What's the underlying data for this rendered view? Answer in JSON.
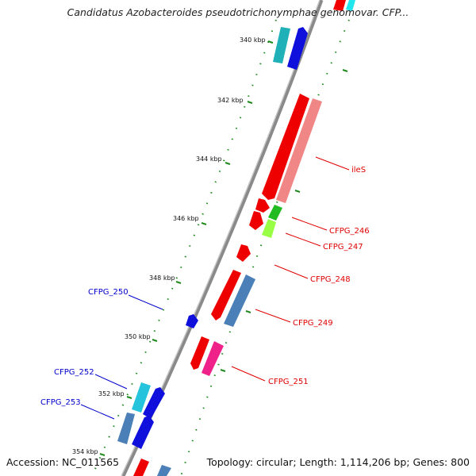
{
  "title": "Candidatus Azobacteroides pseudotrichonymphae genomovar. CFP...",
  "footer": {
    "accession": "Accession: NC_011565",
    "summary": "Topology: circular; Length: 1,114,206 bp; Genes: 800"
  },
  "colors": {
    "backbone": "#8a8a8a",
    "tick": "#1e8a1e",
    "plus_label": "#e00000",
    "minus_label": "#0000cc"
  },
  "ticks": [
    "340 kbp",
    "342 kbp",
    "344 kbp",
    "346 kbp",
    "348 kbp",
    "350 kbp",
    "352 kbp",
    "354 kbp"
  ],
  "gene_labels": [
    {
      "text": "ileS",
      "strand": "plus"
    },
    {
      "text": "CFPG_246",
      "strand": "plus"
    },
    {
      "text": "CFPG_247",
      "strand": "plus"
    },
    {
      "text": "CFPG_248",
      "strand": "plus"
    },
    {
      "text": "CFPG_249",
      "strand": "plus"
    },
    {
      "text": "CFPG_251",
      "strand": "plus"
    },
    {
      "text": "CFPG_250",
      "strand": "minus"
    },
    {
      "text": "CFPG_252",
      "strand": "minus"
    },
    {
      "text": "CFPG_253",
      "strand": "minus"
    }
  ]
}
